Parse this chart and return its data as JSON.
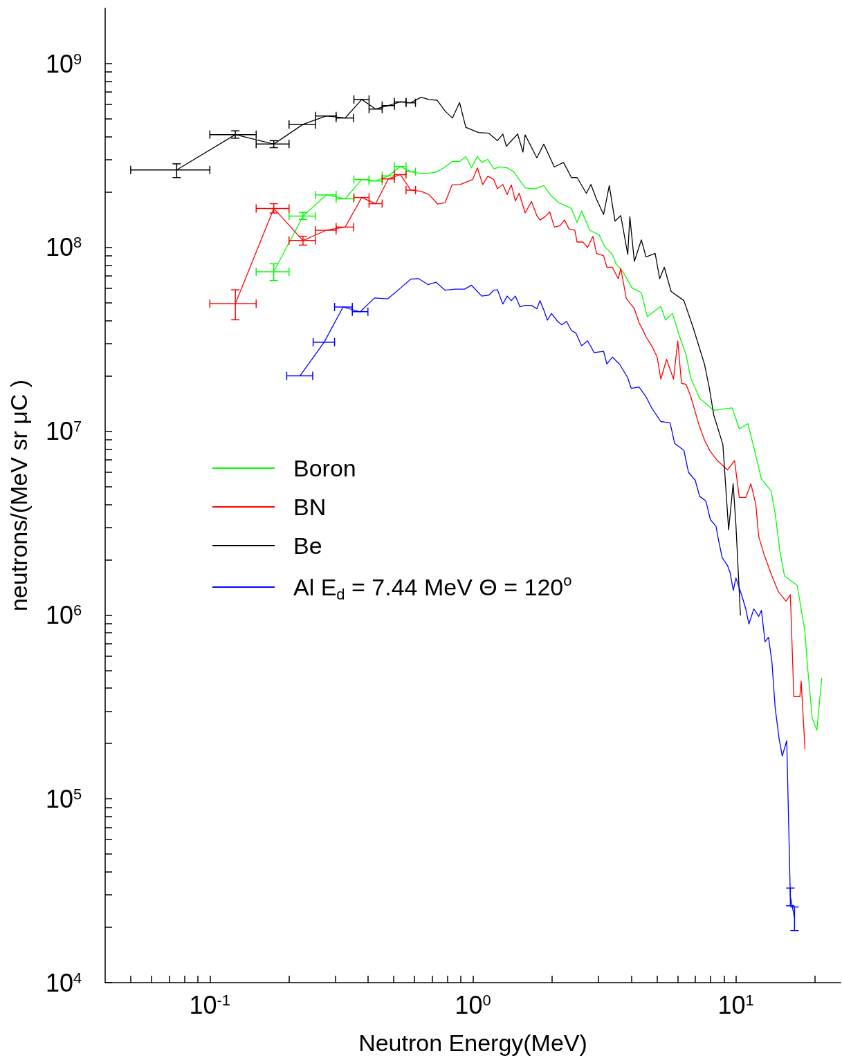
{
  "chart_data": {
    "type": "line",
    "xlabel": "Neutron Energy(MeV)",
    "ylabel": "neutrons/(MeV sr μC )",
    "log": "xy",
    "legend": "left",
    "xlim": [
      0.04,
      25
    ],
    "ylim": [
      10000,
      2000000000
    ],
    "xticks": [
      {
        "value": 0.05,
        "label": null
      },
      {
        "value": 0.06,
        "label": null
      },
      {
        "value": 0.07,
        "label": null
      },
      {
        "value": 0.08,
        "label": null
      },
      {
        "value": 0.09,
        "label": null
      },
      {
        "value": 0.1,
        "label": "10$^{-1}$"
      },
      {
        "value": 0.2,
        "label": null
      },
      {
        "value": 0.3,
        "label": null
      },
      {
        "value": 0.4,
        "label": null
      },
      {
        "value": 0.5,
        "label": null
      },
      {
        "value": 0.6,
        "label": null
      },
      {
        "value": 0.7,
        "label": null
      },
      {
        "value": 0.8,
        "label": null
      },
      {
        "value": 0.9,
        "label": null
      },
      {
        "value": 1,
        "label": "10$^{0}$"
      },
      {
        "value": 2,
        "label": null
      },
      {
        "value": 3,
        "label": null
      },
      {
        "value": 4,
        "label": null
      },
      {
        "value": 5,
        "label": null
      },
      {
        "value": 6,
        "label": null
      },
      {
        "value": 7,
        "label": null
      },
      {
        "value": 8,
        "label": null
      },
      {
        "value": 9,
        "label": null
      },
      {
        "value": 10,
        "label": "10$^{1}$"
      },
      {
        "value": 20,
        "label": null
      }
    ],
    "yticks": [
      {
        "value": 10000,
        "label": "10$^{4}$"
      },
      {
        "value": 20000,
        "label": null
      },
      {
        "value": 30000,
        "label": null
      },
      {
        "value": 40000,
        "label": null
      },
      {
        "value": 50000,
        "label": null
      },
      {
        "value": 60000,
        "label": null
      },
      {
        "value": 70000,
        "label": null
      },
      {
        "value": 80000,
        "label": null
      },
      {
        "value": 90000,
        "label": null
      },
      {
        "value": 100000,
        "label": "10$^{5}$"
      },
      {
        "value": 200000,
        "label": null
      },
      {
        "value": 300000,
        "label": null
      },
      {
        "value": 400000,
        "label": null
      },
      {
        "value": 500000,
        "label": null
      },
      {
        "value": 600000,
        "label": null
      },
      {
        "value": 700000,
        "label": null
      },
      {
        "value": 800000,
        "label": null
      },
      {
        "value": 900000,
        "label": null
      },
      {
        "value": 1000000,
        "label": "10$^{6}$"
      },
      {
        "value": 2000000,
        "label": null
      },
      {
        "value": 3000000,
        "label": null
      },
      {
        "value": 4000000,
        "label": null
      },
      {
        "value": 5000000,
        "label": null
      },
      {
        "value": 6000000,
        "label": null
      },
      {
        "value": 7000000,
        "label": null
      },
      {
        "value": 8000000,
        "label": null
      },
      {
        "value": 9000000,
        "label": null
      },
      {
        "value": 10000000,
        "label": "10$^{7}$"
      },
      {
        "value": 20000000,
        "label": null
      },
      {
        "value": 30000000,
        "label": null
      },
      {
        "value": 40000000,
        "label": null
      },
      {
        "value": 50000000,
        "label": null
      },
      {
        "value": 60000000,
        "label": null
      },
      {
        "value": 70000000,
        "label": null
      },
      {
        "value": 80000000,
        "label": null
      },
      {
        "value": 90000000,
        "label": null
      },
      {
        "value": 100000000,
        "label": "10$^{8}$"
      },
      {
        "value": 200000000,
        "label": null
      },
      {
        "value": 300000000,
        "label": null
      },
      {
        "value": 400000000,
        "label": null
      },
      {
        "value": 500000000,
        "label": null
      },
      {
        "value": 600000000,
        "label": null
      },
      {
        "value": 700000000,
        "label": null
      },
      {
        "value": 800000000,
        "label": null
      },
      {
        "value": 900000000,
        "label": null
      },
      {
        "value": 1000000000,
        "label": "10$^{9}$"
      }
    ],
    "series": [
      {
        "name": "Boron",
        "color": "#00ff00",
        "x": [
          0.175,
          0.226,
          0.277,
          0.327,
          0.378,
          0.427,
          0.477,
          0.53,
          0.58,
          0.629,
          0.681,
          0.731,
          0.784,
          0.836,
          0.89,
          0.94,
          0.988,
          1.04,
          1.08,
          1.14,
          1.2,
          1.27,
          1.35,
          1.43,
          1.5,
          1.58,
          1.72,
          1.86,
          1.98,
          2.12,
          2.37,
          2.49,
          2.59,
          2.78,
          3.02,
          3.17,
          3.39,
          3.5,
          3.72,
          4.03,
          4.37,
          4.6,
          5.18,
          5.4,
          5.74,
          6.1,
          6.46,
          6.73,
          7.28,
          8.23,
          9.67,
          10.3,
          11.1,
          11.8,
          12.5,
          13.6,
          14.1,
          14.7,
          15.3,
          17.1,
          18.3,
          18.7,
          19.5,
          20.3,
          21.2
        ],
        "values": [
          73700000.0,
          148000000.0,
          193000000.0,
          184000000.0,
          234000000.0,
          230000000.0,
          245000000.0,
          276000000.0,
          258000000.0,
          253000000.0,
          253000000.0,
          258000000.0,
          274000000.0,
          294000000.0,
          293000000.0,
          312000000.0,
          271000000.0,
          313000000.0,
          290000000.0,
          301000000.0,
          268000000.0,
          274000000.0,
          271000000.0,
          258000000.0,
          234000000.0,
          211000000.0,
          208000000.0,
          217000000.0,
          192000000.0,
          175000000.0,
          163000000.0,
          137000000.0,
          158000000.0,
          124000000.0,
          117000000.0,
          101000000.0,
          91500000.0,
          81500000.0,
          73700000.0,
          60200000.0,
          56800000.0,
          42000000.0,
          47800000.0,
          40200000.0,
          43800000.0,
          32800000.0,
          26100000.0,
          19500000.0,
          15100000.0,
          13000000.0,
          13400000.0,
          10300000.0,
          11000000.0,
          7760000.0,
          5490000.0,
          4750000.0,
          3560000.0,
          2220000.0,
          1630000.0,
          1450000.0,
          810000.0,
          530000.0,
          275000.0,
          236000.0,
          454000.0
        ],
        "xerrors": [
          [
            0.15,
            0.2
          ],
          [
            0.2,
            0.252
          ],
          [
            0.252,
            0.302
          ],
          [
            0.302,
            0.352
          ],
          [
            0.353,
            0.403
          ],
          [
            0.403,
            0.452
          ],
          [
            0.452,
            0.503
          ],
          [
            0.503,
            0.557
          ],
          [
            0.557,
            0.605
          ],
          null,
          null,
          null,
          null,
          null,
          null,
          null,
          null,
          null,
          null,
          null,
          null,
          null,
          null,
          null,
          null,
          null,
          null,
          null,
          null,
          null,
          null,
          null,
          null,
          null,
          null,
          null,
          null,
          null,
          null,
          null,
          null,
          null,
          null,
          null,
          null,
          null,
          null,
          null,
          null,
          null,
          null,
          null,
          null,
          null,
          null,
          null,
          null,
          null,
          null,
          null,
          null,
          null,
          null,
          null,
          null
        ],
        "errors": [
          [
            66000000.0,
            81500000.0
          ],
          [
            142000000.0,
            155000000.0
          ],
          null,
          null,
          null,
          null,
          null,
          null,
          null,
          null,
          null,
          null,
          null,
          null,
          null,
          null,
          null,
          null,
          null,
          null,
          null,
          null,
          null,
          null,
          null,
          null,
          null,
          null,
          null,
          null,
          null,
          null,
          null,
          null,
          null,
          null,
          null,
          null,
          null,
          null,
          null,
          null,
          null,
          null,
          null,
          null,
          null,
          null,
          null,
          null,
          null,
          null,
          null,
          null,
          null,
          null,
          null,
          null,
          null,
          null,
          null,
          null,
          null,
          null,
          null
        ]
      },
      {
        "name": "BN",
        "color": "#ff0000",
        "x": [
          0.125,
          0.175,
          0.226,
          0.277,
          0.327,
          0.378,
          0.427,
          0.477,
          0.53,
          0.58,
          0.635,
          0.681,
          0.735,
          0.784,
          0.833,
          0.894,
          0.94,
          0.998,
          1.04,
          1.09,
          1.14,
          1.2,
          1.24,
          1.3,
          1.35,
          1.4,
          1.45,
          1.5,
          1.58,
          1.67,
          1.75,
          1.8,
          1.88,
          1.96,
          2.04,
          2.14,
          2.23,
          2.32,
          2.44,
          2.49,
          2.62,
          2.73,
          2.86,
          2.95,
          3.14,
          3.23,
          3.39,
          3.57,
          3.65,
          3.83,
          4.11,
          4.28,
          4.46,
          4.54,
          4.78,
          5.02,
          5.18,
          5.45,
          5.79,
          6.01,
          6.21,
          6.46,
          6.73,
          7.21,
          7.59,
          7.99,
          8.51,
          9.28,
          9.88,
          10.3,
          10.9,
          11.4,
          11.9,
          12.2,
          12.8,
          13.7,
          14.5,
          15.5,
          16.1,
          16.6,
          17.5,
          17.7,
          18.3
        ],
        "values": [
          49400000.0,
          163000000.0,
          109000000.0,
          124000000.0,
          129000000.0,
          187000000.0,
          173000000.0,
          236000000.0,
          249000000.0,
          205000000.0,
          202000000.0,
          194000000.0,
          172000000.0,
          175000000.0,
          219000000.0,
          220000000.0,
          226000000.0,
          234000000.0,
          271000000.0,
          220000000.0,
          244000000.0,
          234000000.0,
          209000000.0,
          220000000.0,
          194000000.0,
          219000000.0,
          179000000.0,
          197000000.0,
          154000000.0,
          178000000.0,
          149000000.0,
          141000000.0,
          147000000.0,
          156000000.0,
          129000000.0,
          131000000.0,
          141000000.0,
          126000000.0,
          124000000.0,
          107000000.0,
          107000000.0,
          100000000.0,
          115000000.0,
          92800000.0,
          90100000.0,
          78000000.0,
          78000000.0,
          67600000.0,
          76900000.0,
          52800000.0,
          46400000.0,
          39000000.0,
          34800000.0,
          32800000.0,
          29200000.0,
          25300000.0,
          19200000.0,
          24600000.0,
          19200000.0,
          31000000.0,
          18200000.0,
          18000000.0,
          15500000.0,
          11000000.0,
          8960000.0,
          7760000.0,
          6910000.0,
          6160000.0,
          6910000.0,
          4360000.0,
          4360000.0,
          5180000.0,
          4000000.0,
          2680000.0,
          2130000.0,
          1630000.0,
          1340000.0,
          1190000.0,
          1290000.0,
          360000.0,
          360000.0,
          437000.0,
          187000.0
        ],
        "xerrors": [
          [
            0.1,
            0.15
          ],
          [
            0.15,
            0.2
          ],
          [
            0.2,
            0.252
          ],
          [
            0.252,
            0.302
          ],
          [
            0.302,
            0.352
          ],
          [
            0.353,
            0.403
          ],
          [
            0.403,
            0.452
          ],
          [
            0.452,
            0.503
          ],
          [
            0.503,
            0.557
          ],
          [
            0.557,
            0.605
          ],
          null,
          null,
          null,
          null,
          null,
          null,
          null,
          null,
          null,
          null,
          null,
          null,
          null,
          null,
          null,
          null,
          null,
          null,
          null,
          null,
          null,
          null,
          null,
          null,
          null,
          null,
          null,
          null,
          null,
          null,
          null,
          null,
          null,
          null,
          null,
          null,
          null,
          null,
          null,
          null,
          null,
          null,
          null,
          null,
          null,
          null,
          null,
          null,
          null,
          null,
          null,
          null,
          null,
          null,
          null,
          null,
          null,
          null,
          null,
          null,
          null,
          null,
          null,
          null,
          null,
          null,
          null,
          null,
          null,
          null,
          null,
          null,
          null
        ],
        "errors": [
          [
            40400000.0,
            58800000.0
          ],
          [
            154000000.0,
            173000000.0
          ],
          [
            103000000.0,
            115000000.0
          ],
          null,
          null,
          null,
          null,
          null,
          null,
          null,
          null,
          null,
          null,
          null,
          null,
          null,
          null,
          null,
          null,
          null,
          null,
          null,
          null,
          null,
          null,
          null,
          null,
          null,
          null,
          null,
          null,
          null,
          null,
          null,
          null,
          null,
          null,
          null,
          null,
          null,
          null,
          null,
          null,
          null,
          null,
          null,
          null,
          null,
          null,
          null,
          null,
          null,
          null,
          null,
          null,
          null,
          null,
          null,
          null,
          null,
          null,
          null,
          null,
          null,
          null,
          null,
          null,
          null,
          null,
          null,
          null,
          null,
          null,
          null,
          null,
          null,
          null,
          null,
          null,
          null,
          null,
          null,
          null
        ]
      },
      {
        "name": "Be",
        "color": "#000000",
        "x": [
          0.0748,
          0.125,
          0.175,
          0.226,
          0.277,
          0.327,
          0.378,
          0.427,
          0.477,
          0.53,
          0.58,
          0.635,
          0.681,
          0.731,
          0.784,
          0.836,
          0.89,
          0.94,
          1.05,
          1.15,
          1.24,
          1.3,
          1.34,
          1.48,
          1.55,
          1.58,
          1.75,
          1.86,
          2.04,
          2.21,
          2.37,
          2.49,
          2.7,
          2.81,
          2.95,
          3.14,
          3.3,
          3.47,
          3.65,
          3.88,
          3.95,
          4.11,
          4.37,
          4.55,
          4.93,
          5.13,
          5.34,
          5.67,
          6.34,
          6.87,
          7.59,
          7.91,
          8.23,
          8.92,
          9.38,
          9.76,
          10.0,
          10.4
        ],
        "values": [
          264000000.0,
          411000000.0,
          365000000.0,
          467000000.0,
          519000000.0,
          506000000.0,
          638000000.0,
          566000000.0,
          591000000.0,
          619000000.0,
          612000000.0,
          656000000.0,
          638000000.0,
          632000000.0,
          552000000.0,
          506000000.0,
          614000000.0,
          450000000.0,
          422000000.0,
          418000000.0,
          381000000.0,
          414000000.0,
          355000000.0,
          414000000.0,
          330000000.0,
          410000000.0,
          307000000.0,
          365000000.0,
          274000000.0,
          290000000.0,
          240000000.0,
          240000000.0,
          197000000.0,
          220000000.0,
          183000000.0,
          151000000.0,
          217000000.0,
          139000000.0,
          149000000.0,
          91500000.0,
          147000000.0,
          83900000.0,
          110000000.0,
          88800000.0,
          92800000.0,
          67600000.0,
          78000000.0,
          57600000.0,
          51400000.0,
          36800000.0,
          23200000.0,
          17400000.0,
          12300000.0,
          8460000.0,
          2910000.0,
          5180000.0,
          3080000.0,
          1000000.0
        ],
        "xerrors": [
          [
            0.05,
            0.1
          ],
          [
            0.1,
            0.15
          ],
          [
            0.15,
            0.2
          ],
          [
            0.2,
            0.252
          ],
          [
            0.252,
            0.302
          ],
          [
            0.302,
            0.352
          ],
          [
            0.353,
            0.403
          ],
          [
            0.403,
            0.452
          ],
          [
            0.452,
            0.503
          ],
          [
            0.503,
            0.557
          ],
          [
            0.557,
            0.605
          ],
          null,
          null,
          null,
          null,
          null,
          null,
          null,
          null,
          null,
          null,
          null,
          null,
          null,
          null,
          null,
          null,
          null,
          null,
          null,
          null,
          null,
          null,
          null,
          null,
          null,
          null,
          null,
          null,
          null,
          null,
          null,
          null,
          null,
          null,
          null,
          null,
          null,
          null,
          null,
          null,
          null,
          null,
          null,
          null,
          null,
          null,
          null
        ],
        "errors": [
          [
            240000000.0,
            285000000.0
          ],
          [
            393000000.0,
            431000000.0
          ],
          [
            349000000.0,
            381000000.0
          ],
          null,
          null,
          null,
          null,
          null,
          null,
          null,
          null,
          null,
          null,
          null,
          null,
          null,
          null,
          null,
          null,
          null,
          null,
          null,
          null,
          null,
          null,
          null,
          null,
          null,
          null,
          null,
          null,
          null,
          null,
          null,
          null,
          null,
          null,
          null,
          null,
          null,
          null,
          null,
          null,
          null,
          null,
          null,
          null,
          null,
          null,
          null,
          null,
          null,
          null,
          null,
          null,
          null,
          null,
          null
        ]
      },
      {
        "name": "Al E$_{d}$ = 7.44 MeV Θ = 120$^{o}$",
        "color": "#0000ff",
        "x": [
          0.22,
          0.272,
          0.321,
          0.373,
          0.423,
          0.474,
          0.525,
          0.58,
          0.622,
          0.675,
          0.724,
          0.784,
          0.859,
          0.93,
          0.988,
          1.04,
          1.08,
          1.15,
          1.2,
          1.24,
          1.3,
          1.35,
          1.4,
          1.45,
          1.51,
          1.58,
          1.67,
          1.75,
          1.8,
          1.86,
          1.92,
          1.99,
          2.1,
          2.18,
          2.27,
          2.37,
          2.46,
          2.59,
          2.73,
          2.89,
          3.14,
          3.23,
          3.39,
          3.61,
          3.88,
          4.0,
          4.28,
          4.54,
          4.78,
          5.18,
          5.62,
          5.85,
          6.34,
          6.6,
          7.0,
          7.28,
          7.69,
          7.99,
          8.4,
          8.57,
          8.87,
          9.29,
          9.51,
          9.77,
          10.0,
          10.5,
          10.9,
          11.2,
          11.7,
          12.2,
          12.5,
          12.9,
          13.3,
          13.7,
          14.1,
          14.6,
          15.0,
          15.6,
          16.1,
          16.7
        ],
        "values": [
          20000000.0,
          30500000.0,
          47400000.0,
          44700000.0,
          53100000.0,
          52500000.0,
          59300000.0,
          67200000.0,
          67600000.0,
          62800000.0,
          64700000.0,
          58500000.0,
          59300000.0,
          59300000.0,
          62300000.0,
          57600000.0,
          54400000.0,
          55000000.0,
          58500000.0,
          58800000.0,
          49200000.0,
          54400000.0,
          51300000.0,
          54400000.0,
          47500000.0,
          48400000.0,
          48400000.0,
          46400000.0,
          51300000.0,
          45700000.0,
          40200000.0,
          43700000.0,
          39600000.0,
          37900000.0,
          39600000.0,
          35300000.0,
          34300000.0,
          29200000.0,
          31000000.0,
          26800000.0,
          27200000.0,
          23200000.0,
          25300000.0,
          23200000.0,
          19500000.0,
          17100000.0,
          17400000.0,
          15500000.0,
          13400000.0,
          11300000.0,
          11100000.0,
          8580000.0,
          7870000.0,
          5980000.0,
          5410000.0,
          4420000.0,
          4170000.0,
          3310000.0,
          3040000.0,
          2590000.0,
          2050000.0,
          1860000.0,
          1690000.0,
          1360000.0,
          1590000.0,
          1290000.0,
          1080000.0,
          893000.0,
          1080000.0,
          983000.0,
          1060000.0,
          716000.0,
          756000.0,
          557000.0,
          312000.0,
          211000.0,
          171000.0,
          207000.0,
          29400.0,
          22500.0
        ],
        "xerrors": [
          [
            0.196,
            0.246
          ],
          [
            0.247,
            0.298
          ],
          [
            0.298,
            0.348
          ],
          [
            0.348,
            0.399
          ],
          null,
          null,
          null,
          null,
          null,
          null,
          null,
          null,
          null,
          null,
          null,
          null,
          null,
          null,
          null,
          null,
          null,
          null,
          null,
          null,
          null,
          null,
          null,
          null,
          null,
          null,
          null,
          null,
          null,
          null,
          null,
          null,
          null,
          null,
          null,
          null,
          null,
          null,
          null,
          null,
          null,
          null,
          null,
          null,
          null,
          null,
          null,
          null,
          null,
          null,
          null,
          null,
          null,
          null,
          null,
          null,
          null,
          null,
          null,
          null,
          null,
          null,
          null,
          null,
          null,
          null,
          null,
          null,
          null,
          null,
          null,
          null,
          null,
          null,
          null,
          null
        ],
        "errors": [
          null,
          null,
          null,
          null,
          null,
          null,
          null,
          null,
          null,
          null,
          null,
          null,
          null,
          null,
          null,
          null,
          null,
          null,
          null,
          null,
          null,
          null,
          null,
          null,
          null,
          null,
          null,
          null,
          null,
          null,
          null,
          null,
          null,
          null,
          null,
          null,
          null,
          null,
          null,
          null,
          null,
          null,
          null,
          null,
          null,
          null,
          null,
          null,
          null,
          null,
          null,
          null,
          null,
          null,
          null,
          null,
          null,
          null,
          null,
          null,
          null,
          null,
          null,
          null,
          null,
          null,
          null,
          null,
          null,
          null,
          null,
          null,
          null,
          null,
          null,
          null,
          null,
          null,
          [
            26200.0,
            32700.0
          ],
          [
            19200.0,
            25800.0
          ]
        ]
      }
    ]
  }
}
